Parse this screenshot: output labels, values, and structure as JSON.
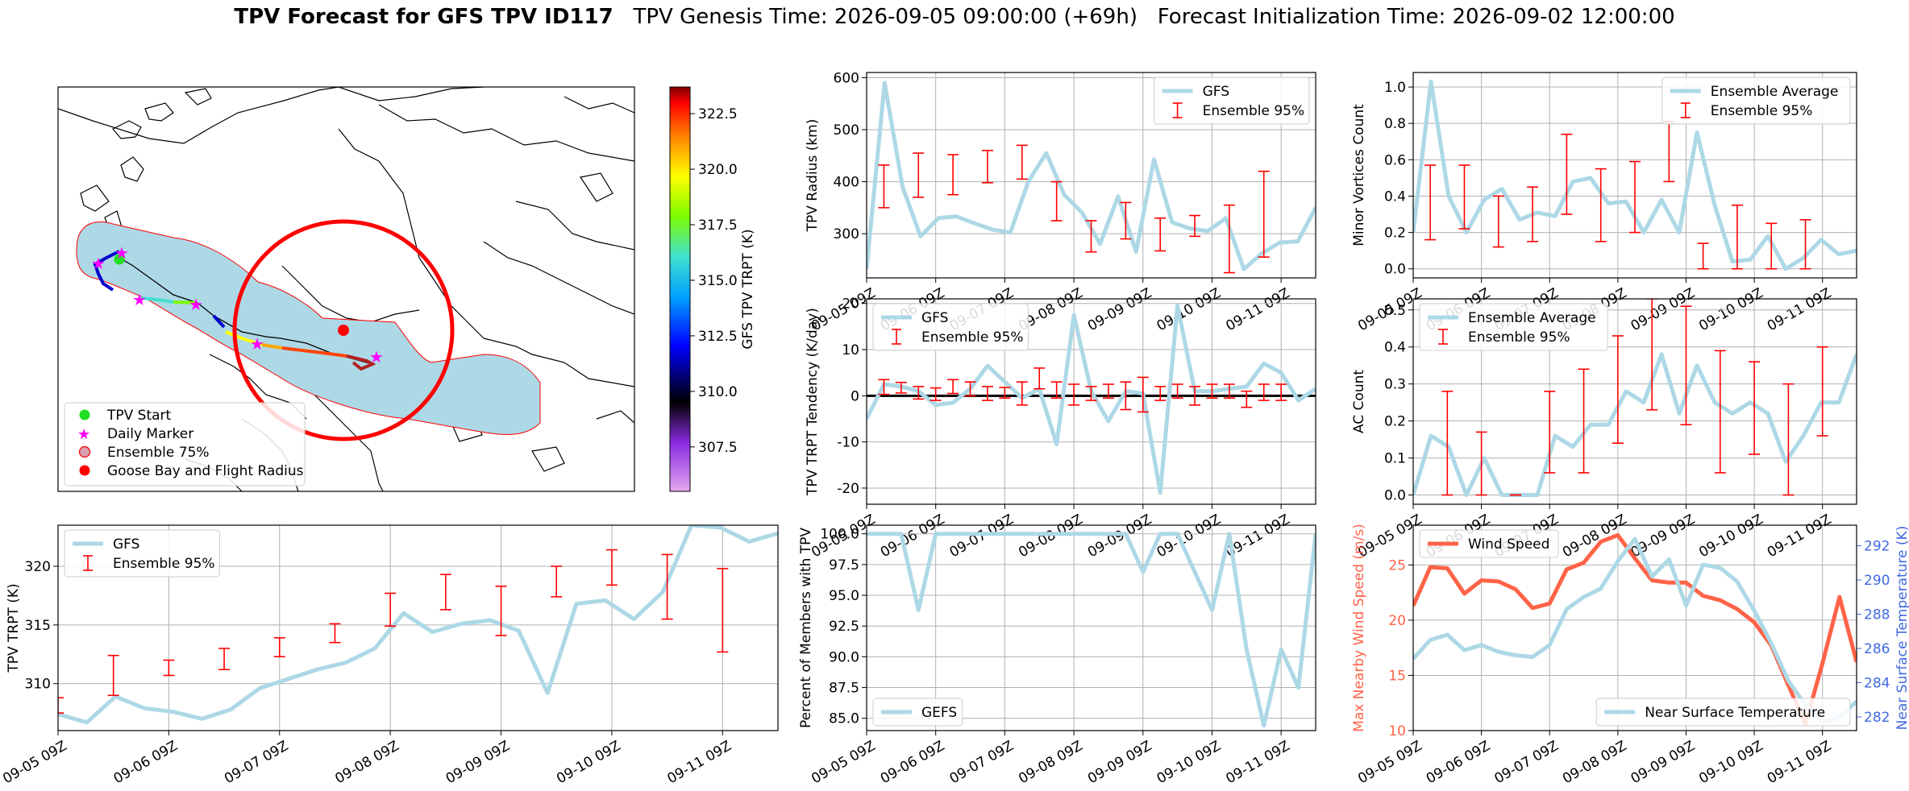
{
  "header": {
    "title_bold": "TPV Forecast for GFS TPV ID117",
    "genesis": "TPV Genesis Time: 2026-09-05 09:00:00 (+69h)",
    "init": "Forecast Initialization Time: 2026-09-02 12:00:00"
  },
  "colors": {
    "gfs": "#add8e6",
    "ens": "#ff0000",
    "wind": "#ff6347",
    "temp_axis": "#4169e1",
    "zero": "#000000"
  },
  "time_ticks": [
    "09-05 09Z",
    "09-06 09Z",
    "09-07 09Z",
    "09-08 09Z",
    "09-09 09Z",
    "09-10 09Z",
    "09-11 09Z"
  ],
  "map": {
    "colorbar_label": "GFS TPV TRPT (K)",
    "colorbar_ticks": [
      "307.5",
      "310.0",
      "312.5",
      "315.0",
      "317.5",
      "320.0",
      "322.5"
    ],
    "colorbar_range": [
      305.5,
      323.7
    ],
    "legend": [
      "TPV Start",
      "Daily Marker",
      "Ensemble 75%",
      "Goose Bay and Flight Radius"
    ],
    "legend_icons": [
      "green-dot-icon",
      "magenta-star-icon",
      "pink-circle-icon",
      "red-dot-icon"
    ]
  },
  "chart_data": [
    {
      "id": "radius",
      "type": "line",
      "ylabel": "TPV Radius (km)",
      "ylim": [
        215,
        610
      ],
      "yticks": [
        300,
        400,
        500,
        600
      ],
      "legend_loc": "upper-right",
      "legend": [
        "GFS",
        "Ensemble 95%"
      ],
      "gfs": [
        232,
        590,
        390,
        295,
        330,
        333,
        320,
        308,
        302,
        400,
        455,
        375,
        340,
        280,
        372,
        265,
        443,
        322,
        310,
        305,
        330,
        232,
        262,
        283,
        285,
        350
      ],
      "err": [
        [
          1,
          350,
          432
        ],
        [
          3,
          370,
          455
        ],
        [
          5,
          375,
          452
        ],
        [
          7,
          398,
          460
        ],
        [
          9,
          405,
          470
        ],
        [
          11,
          325,
          400
        ],
        [
          13,
          265,
          325
        ],
        [
          15,
          290,
          360
        ],
        [
          17,
          267,
          330
        ],
        [
          19,
          295,
          335
        ],
        [
          21,
          225,
          355
        ],
        [
          23,
          255,
          420
        ]
      ]
    },
    {
      "id": "minor",
      "type": "line",
      "ylabel": "Minor Vortices Count",
      "ylim": [
        -0.05,
        1.08
      ],
      "yticks": [
        0.0,
        0.2,
        0.4,
        0.6,
        0.8,
        1.0
      ],
      "legend_loc": "upper-right",
      "legend": [
        "Ensemble Average",
        "Ensemble 95%"
      ],
      "gfs": [
        0.2,
        1.03,
        0.4,
        0.2,
        0.38,
        0.44,
        0.27,
        0.31,
        0.29,
        0.48,
        0.5,
        0.36,
        0.37,
        0.2,
        0.38,
        0.2,
        0.75,
        0.35,
        0.04,
        0.05,
        0.18,
        0.0,
        0.06,
        0.16,
        0.08,
        0.1
      ],
      "err": [
        [
          -2,
          0.07,
          0.5
        ],
        [
          1,
          0.16,
          0.57
        ],
        [
          3,
          0.22,
          0.57
        ],
        [
          5,
          0.12,
          0.4
        ],
        [
          7,
          0.15,
          0.45
        ],
        [
          9,
          0.3,
          0.74
        ],
        [
          11,
          0.15,
          0.55
        ],
        [
          13,
          0.2,
          0.59
        ],
        [
          15,
          0.48,
          0.81
        ],
        [
          17,
          0.0,
          0.14
        ],
        [
          19,
          0.0,
          0.35
        ],
        [
          21,
          0.0,
          0.25
        ],
        [
          23,
          0.0,
          0.27
        ]
      ]
    },
    {
      "id": "tend",
      "type": "line",
      "ylabel": "TPV TRPT Tendency (K/day)",
      "ylim": [
        -23.5,
        21
      ],
      "yticks": [
        -20,
        -10,
        0,
        10,
        20
      ],
      "zero_line": true,
      "legend_loc": "upper-left",
      "legend": [
        "GFS",
        "Ensemble 95%"
      ],
      "gfs": [
        -5,
        2.5,
        2,
        1,
        -2,
        -1.5,
        1.5,
        6.5,
        3,
        -0.5,
        1.5,
        -10.5,
        17.5,
        1,
        -5.5,
        1,
        0.5,
        -21,
        19.5,
        1,
        1,
        1.5,
        2,
        7,
        5,
        -1,
        1.5
      ],
      "err": [
        [
          1,
          0.3,
          3.5
        ],
        [
          2,
          0.6,
          2.9
        ],
        [
          3,
          -0.7,
          2.0
        ],
        [
          4,
          -1.0,
          1.7
        ],
        [
          5,
          0.5,
          3.5
        ],
        [
          6,
          0.0,
          3.0
        ],
        [
          7,
          -1.0,
          2.0
        ],
        [
          8,
          -0.5,
          1.8
        ],
        [
          9,
          -2.0,
          3.0
        ],
        [
          10,
          1.5,
          6.0
        ],
        [
          11,
          -0.5,
          3.0
        ],
        [
          12,
          -2.0,
          2.5
        ],
        [
          13,
          -1.0,
          2.0
        ],
        [
          14,
          -0.5,
          2.5
        ],
        [
          15,
          -3.0,
          3.0
        ],
        [
          16,
          -3.5,
          4.0
        ],
        [
          17,
          -1.0,
          2.0
        ],
        [
          18,
          -0.5,
          2.5
        ],
        [
          19,
          -2.0,
          2.0
        ],
        [
          20,
          -0.5,
          2.5
        ],
        [
          21,
          -0.5,
          2.5
        ],
        [
          22,
          -2.5,
          1.0
        ],
        [
          23,
          -1.0,
          2.5
        ],
        [
          24,
          -1.0,
          2.5
        ]
      ]
    },
    {
      "id": "ac",
      "type": "line",
      "ylabel": "AC Count",
      "ylim": [
        -0.025,
        0.53
      ],
      "yticks": [
        0.0,
        0.1,
        0.2,
        0.3,
        0.4,
        0.5
      ],
      "legend_loc": "upper-left",
      "legend": [
        "Ensemble Average",
        "Ensemble 95%"
      ],
      "gfs": [
        0.0,
        0.16,
        0.13,
        0.0,
        0.1,
        0.0,
        0.0,
        0.0,
        0.16,
        0.13,
        0.19,
        0.19,
        0.28,
        0.25,
        0.38,
        0.22,
        0.35,
        0.25,
        0.22,
        0.25,
        0.22,
        0.09,
        0.16,
        0.25,
        0.25,
        0.38
      ],
      "err": [
        [
          2,
          0.0,
          0.28
        ],
        [
          4,
          0.0,
          0.17
        ],
        [
          6,
          0.0,
          0.0
        ],
        [
          8,
          0.06,
          0.28
        ],
        [
          10,
          0.06,
          0.34
        ],
        [
          12,
          0.14,
          0.43
        ],
        [
          14,
          0.23,
          0.53
        ],
        [
          16,
          0.19,
          0.51
        ],
        [
          18,
          0.06,
          0.39
        ],
        [
          20,
          0.11,
          0.36
        ],
        [
          22,
          0.0,
          0.3
        ],
        [
          24,
          0.16,
          0.4
        ]
      ]
    },
    {
      "id": "trpt",
      "type": "line",
      "ylabel": "TPV TRPT (K)",
      "ylim": [
        306,
        323.5
      ],
      "yticks": [
        310,
        315,
        320
      ],
      "legend_loc": "upper-left",
      "legend": [
        "GFS",
        "Ensemble 95%"
      ],
      "gfs": [
        307.4,
        306.7,
        308.9,
        307.9,
        307.6,
        307,
        307.8,
        309.6,
        310.4,
        311.2,
        311.8,
        313,
        316,
        314.4,
        315.1,
        315.4,
        314.5,
        309.2,
        316.8,
        317.1,
        315.5,
        317.8,
        323.5,
        323.3,
        322.1,
        322.8
      ],
      "err": [
        [
          0,
          307.5,
          308.8
        ],
        [
          2,
          309.0,
          312.4
        ],
        [
          4,
          310.7,
          312.0
        ],
        [
          6,
          311.2,
          313.0
        ],
        [
          8,
          312.3,
          313.9
        ],
        [
          10,
          313.5,
          315.1
        ],
        [
          12,
          314.9,
          317.7
        ],
        [
          14,
          316.3,
          319.3
        ],
        [
          16,
          314.1,
          318.3
        ],
        [
          18,
          317.4,
          320.0
        ],
        [
          20,
          318.4,
          321.4
        ],
        [
          22,
          315.5,
          321.0
        ],
        [
          24,
          312.7,
          319.8
        ]
      ]
    },
    {
      "id": "percent",
      "type": "line",
      "ylabel": "Percent of Members with TPV",
      "ylim": [
        84,
        100.7
      ],
      "yticks": [
        85.0,
        87.5,
        90.0,
        92.5,
        95.0,
        97.5,
        100.0
      ],
      "legend_loc": "lower-left",
      "legend": [
        "GEFS"
      ],
      "gfs": [
        100,
        100,
        100,
        93.8,
        100,
        100,
        100,
        100,
        100,
        100,
        100,
        100,
        100,
        100,
        100,
        100,
        96.9,
        100,
        100,
        96.9,
        93.8,
        100,
        90.6,
        84.4,
        90.6,
        87.5,
        100
      ]
    },
    {
      "id": "wind",
      "type": "line",
      "ylabel": "Max Nearby Wind Speed (m/s)",
      "ylim": [
        10,
        28.6
      ],
      "yticks": [
        10,
        15,
        20,
        25
      ],
      "legend_loc": "upper-left",
      "legend": [
        "Wind Speed"
      ],
      "gfs": [
        21.3,
        24.8,
        24.7,
        22.4,
        23.6,
        23.5,
        22.8,
        21.1,
        21.5,
        24.6,
        25.2,
        27.1,
        27.7,
        25.6,
        23.6,
        23.4,
        23.4,
        22.2,
        21.8,
        21,
        19.8,
        17.7,
        14.1,
        10.6,
        16.1,
        22.1,
        16.2
      ],
      "y2label": "Near Surface Temperature (K)",
      "y2lim": [
        281.2,
        293.2
      ],
      "y2ticks": [
        282,
        284,
        286,
        288,
        290,
        292
      ],
      "legend2": [
        "Near Surface Temperature"
      ],
      "temp": [
        285.4,
        286.5,
        286.8,
        285.9,
        286.2,
        285.8,
        285.6,
        285.5,
        286.2,
        288.3,
        289,
        289.5,
        291.1,
        292.4,
        290.2,
        291.2,
        288.5,
        290.9,
        290.7,
        289.9,
        288.2,
        286.3,
        284.1,
        282.7,
        281.7,
        282,
        282.9
      ]
    }
  ]
}
